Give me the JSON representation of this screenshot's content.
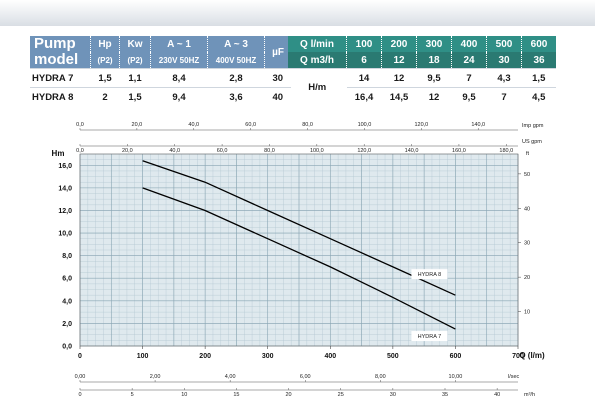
{
  "pump_table": {
    "head_top": [
      "Pump",
      "Hp",
      "Kw",
      "A ~ 1",
      "A ~ 3",
      "µF"
    ],
    "head_bottom": [
      "model",
      "(P2)",
      "(P2)",
      "230V 50HZ",
      "400V 50HZ"
    ],
    "rows": [
      [
        "HYDRA 7",
        "1,5",
        "1,1",
        "8,4",
        "2,8",
        "30"
      ],
      [
        "HYDRA 8",
        "2",
        "1,5",
        "9,4",
        "3,6",
        "40"
      ]
    ]
  },
  "flow_table": {
    "label_lmin": "Q l/min",
    "label_m3h": "Q m3/h",
    "lmin": [
      "100",
      "200",
      "300",
      "400",
      "500",
      "600"
    ],
    "m3h": [
      "6",
      "12",
      "18",
      "24",
      "30",
      "36"
    ],
    "head_label": "H/m",
    "rows": [
      [
        "14",
        "12",
        "9,5",
        "7",
        "4,3",
        "1,5"
      ],
      [
        "16,4",
        "14,5",
        "12",
        "9,5",
        "7",
        "4,5"
      ]
    ]
  },
  "chart_data": {
    "type": "line",
    "ylabel": "Hm",
    "xlabel": "Q (l/m)",
    "xlim": [
      0,
      700
    ],
    "ylim": [
      0,
      17
    ],
    "x_ticks": [
      "0",
      "100",
      "200",
      "300",
      "400",
      "500",
      "600",
      "700"
    ],
    "y_ticks": [
      "0,0",
      "2,0",
      "4,0",
      "6,0",
      "8,0",
      "10,0",
      "12,0",
      "14,0",
      "16,0"
    ],
    "right_unit": "ft",
    "right_ticks": [
      "10",
      "20",
      "30",
      "40",
      "50"
    ],
    "top_axis_1": {
      "unit": "Imp gpm",
      "ticks": [
        "0,0",
        "20,0",
        "40,0",
        "60,0",
        "80,0",
        "100,0",
        "120,0",
        "140,0"
      ]
    },
    "top_axis_2": {
      "unit": "US gpm",
      "ticks": [
        "0,0",
        "20,0",
        "40,0",
        "60,0",
        "80,0",
        "100,0",
        "120,0",
        "140,0",
        "160,0",
        "180,0"
      ]
    },
    "bottom_axis_1": {
      "unit": "l/sec",
      "ticks": [
        "0,00",
        "2,00",
        "4,00",
        "6,00",
        "8,00",
        "10,00"
      ]
    },
    "bottom_axis_2": {
      "unit": "m³/h",
      "ticks": [
        "0",
        "5",
        "10",
        "15",
        "20",
        "25",
        "30",
        "35",
        "40"
      ]
    },
    "series": [
      {
        "name": "HYDRA 8",
        "x": [
          100,
          200,
          300,
          400,
          500,
          600
        ],
        "y": [
          16.4,
          14.5,
          12,
          9.5,
          7,
          4.5
        ]
      },
      {
        "name": "HYDRA 7",
        "x": [
          100,
          200,
          300,
          400,
          500,
          600
        ],
        "y": [
          14,
          12,
          9.5,
          7,
          4.3,
          1.5
        ]
      }
    ],
    "grid": true
  }
}
